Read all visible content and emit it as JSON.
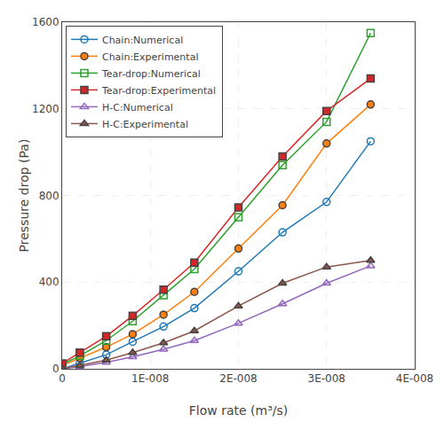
{
  "chart_data": {
    "type": "line",
    "xlabel": "Flow rate (m³/s)",
    "ylabel": "Pressure drop (Pa)",
    "x": [
      0,
      2e-09,
      5e-09,
      8e-09,
      1.15e-08,
      1.5e-08,
      2e-08,
      2.5e-08,
      3e-08,
      3.5e-08
    ],
    "series": [
      {
        "name": "Chain:Numerical",
        "marker": "circle-open",
        "values": [
          0,
          25,
          65,
          125,
          195,
          280,
          450,
          630,
          770,
          1050
        ]
      },
      {
        "name": "Chain:Experimental",
        "marker": "circle",
        "values": [
          15,
          50,
          100,
          160,
          250,
          355,
          555,
          755,
          1040,
          1220
        ]
      },
      {
        "name": "Tear-drop:Numerical",
        "marker": "square-open",
        "values": [
          20,
          60,
          130,
          220,
          340,
          460,
          700,
          940,
          1140,
          1550
        ]
      },
      {
        "name": "Tear-drop:Experimental",
        "marker": "square",
        "values": [
          25,
          75,
          150,
          245,
          365,
          490,
          745,
          980,
          1190,
          1340
        ]
      },
      {
        "name": "H-C:Numerical",
        "marker": "triangle-up-open",
        "values": [
          0,
          10,
          30,
          55,
          90,
          130,
          210,
          300,
          395,
          475
        ]
      },
      {
        "name": "H-C:Experimental",
        "marker": "triangle-up",
        "values": [
          0,
          15,
          40,
          75,
          120,
          175,
          290,
          395,
          470,
          500
        ]
      }
    ],
    "xlim": [
      0,
      4e-08
    ],
    "ylim": [
      0,
      1600
    ],
    "xticks": [
      0,
      {
        "value": 1e-08,
        "label": "1E-008"
      },
      {
        "value": 2e-08,
        "label": "2E-008"
      },
      {
        "value": 3e-08,
        "label": "3E-008"
      },
      {
        "value": 4e-08,
        "label": "4E-008"
      }
    ],
    "yticks": [
      0,
      400,
      800,
      1200,
      1600
    ],
    "grid": true,
    "legend": "upper left"
  }
}
